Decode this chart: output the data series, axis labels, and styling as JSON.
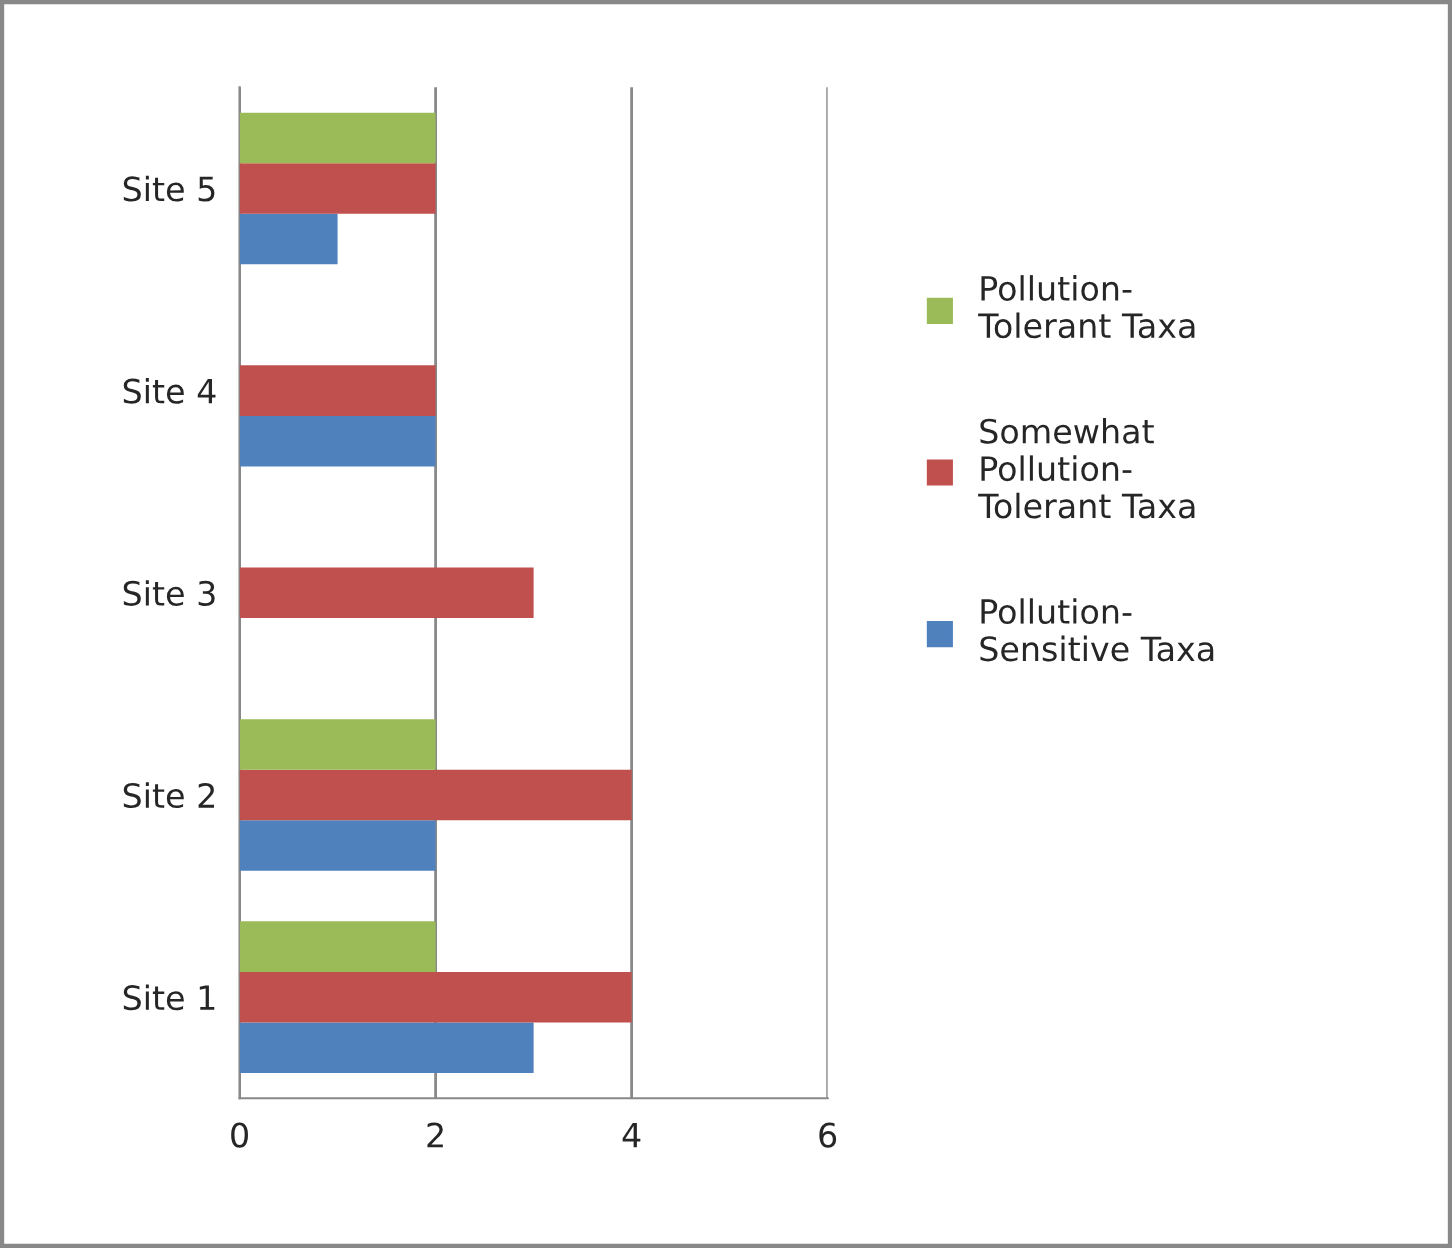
{
  "chart_data": {
    "type": "bar",
    "orientation": "horizontal",
    "categories": [
      "Site 5",
      "Site 4",
      "Site 3",
      "Site 2",
      "Site 1"
    ],
    "series": [
      {
        "name": "Pollution-\nSensitive Taxa",
        "color": "#4f81bd",
        "values": [
          1,
          2,
          null,
          2,
          3
        ]
      },
      {
        "name": "Somewhat\nPollution-\nTolerant Taxa",
        "color": "#c0504d",
        "values": [
          2,
          2,
          3,
          4,
          4
        ]
      },
      {
        "name": "Pollution-\nTolerant Taxa",
        "color": "#9bbb59",
        "values": [
          2,
          null,
          null,
          2,
          2
        ]
      }
    ],
    "xlim": [
      0,
      6
    ],
    "xticks": [
      0,
      2,
      4,
      6
    ],
    "grid": "x",
    "legend": "right"
  }
}
